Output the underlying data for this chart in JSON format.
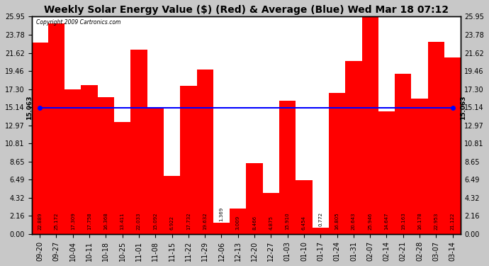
{
  "title": "Weekly Solar Energy Value ($) (Red) & Average (Blue) Wed Mar 18 07:12",
  "copyright": "Copyright 2009 Cartronics.com",
  "categories": [
    "09-20",
    "09-27",
    "10-04",
    "10-11",
    "10-18",
    "10-25",
    "11-01",
    "11-08",
    "11-15",
    "11-22",
    "11-29",
    "12-06",
    "12-13",
    "12-20",
    "12-27",
    "01-03",
    "01-10",
    "01-17",
    "01-24",
    "01-31",
    "02-07",
    "02-14",
    "02-21",
    "02-28",
    "03-07",
    "03-14"
  ],
  "values": [
    22.889,
    25.172,
    17.309,
    17.758,
    16.368,
    13.411,
    22.033,
    15.092,
    6.922,
    17.732,
    19.632,
    1.369,
    3.009,
    8.466,
    4.875,
    15.91,
    6.454,
    0.772,
    16.805,
    20.643,
    25.946,
    14.647,
    19.163,
    16.178,
    22.953,
    21.122
  ],
  "bar_color": "#ff0000",
  "average_value": 15.063,
  "average_color": "#0000ff",
  "average_label": "15.063",
  "yticks": [
    0.0,
    2.16,
    4.32,
    6.49,
    8.65,
    10.81,
    12.97,
    15.14,
    17.3,
    19.46,
    21.62,
    23.78,
    25.95
  ],
  "ylim": [
    0,
    25.95
  ],
  "fig_bg_color": "#c8c8c8",
  "plot_bg_color": "#ffffff",
  "grid_color": "#ffffff",
  "grid_linestyle": "--",
  "title_fontsize": 10,
  "tick_fontsize": 7,
  "label_fontsize": 5,
  "avg_label_fontsize": 6.5
}
